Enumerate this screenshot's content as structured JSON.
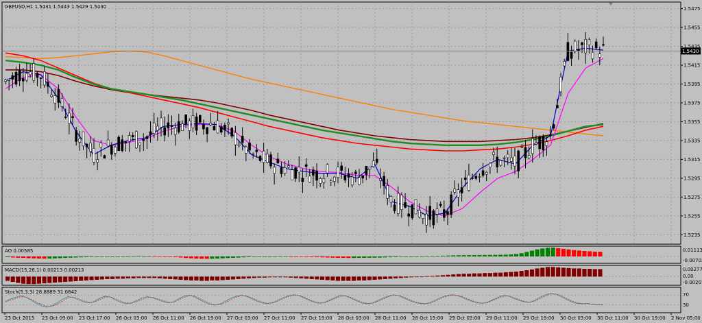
{
  "colors": {
    "background": "#c0c0c0",
    "candle": "#000000",
    "price_line": "#808080",
    "ma_fast": "#0000cc",
    "ma_magenta": "#ff00ff",
    "ma_green": "#228b22",
    "ma_red": "#ff0000",
    "ma_maroon": "#800000",
    "ma_orange": "#ff7f00",
    "ao_up": "#008000",
    "ao_down": "#ff0000",
    "macd": "#800000",
    "stoch_main": "#3a8fb0",
    "stoch_signal": "#cc3333"
  },
  "chart_data": [
    {
      "type": "candlestick",
      "title": "GBPUSD,H1  1.5431 1.5443 1.5429 1.5430",
      "current_price": 1.543,
      "current_price_label": "1.5430",
      "ylim": [
        1.5225,
        1.5482
      ],
      "y_ticks": [
        "1.5475",
        "1.5455",
        "1.5435",
        "1.5415",
        "1.5395",
        "1.5375",
        "1.5355",
        "1.5335",
        "1.5315",
        "1.5295",
        "1.5275",
        "1.5255",
        "1.5235"
      ],
      "x_ticks": [
        "23 Oct 2015",
        "23 Oct 09:00",
        "23 Oct 17:00",
        "26 Oct 03:00",
        "26 Oct 11:00",
        "26 Oct 19:00",
        "27 Oct 03:00",
        "27 Oct 11:00",
        "27 Oct 19:00",
        "28 Oct 03:00",
        "28 Oct 11:00",
        "28 Oct 19:00",
        "29 Oct 03:00",
        "29 Oct 11:00",
        "29 Oct 19:00",
        "30 Oct 03:00",
        "30 Oct 11:00",
        "30 Oct 19:00",
        "2 Nov 05:00"
      ],
      "ma_fast": [
        1.5398,
        1.5408,
        1.5405,
        1.538,
        1.5345,
        1.532,
        1.533,
        1.5335,
        1.5338,
        1.535,
        1.5352,
        1.5353,
        1.5352,
        1.534,
        1.532,
        1.5312,
        1.5305,
        1.5302,
        1.53,
        1.53,
        1.5295,
        1.531,
        1.527,
        1.5265,
        1.5255,
        1.5258,
        1.5285,
        1.5305,
        1.5315,
        1.531,
        1.533,
        1.534,
        1.543,
        1.5433,
        1.5431
      ],
      "ma_magenta": [
        1.539,
        1.5402,
        1.5405,
        1.539,
        1.536,
        1.5335,
        1.533,
        1.5333,
        1.5337,
        1.5345,
        1.535,
        1.5352,
        1.5352,
        1.5345,
        1.533,
        1.5318,
        1.531,
        1.5305,
        1.5302,
        1.5301,
        1.5298,
        1.5298,
        1.5285,
        1.527,
        1.526,
        1.5255,
        1.5263,
        1.528,
        1.5295,
        1.5302,
        1.5315,
        1.533,
        1.5385,
        1.5412,
        1.5422
      ],
      "ma_green": [
        1.542,
        1.5418,
        1.5415,
        1.541,
        1.5402,
        1.5395,
        1.539,
        1.5387,
        1.5384,
        1.5381,
        1.5378,
        1.5374,
        1.537,
        1.5366,
        1.5362,
        1.5358,
        1.5354,
        1.535,
        1.5346,
        1.5343,
        1.534,
        1.5337,
        1.5334,
        1.5332,
        1.5331,
        1.533,
        1.533,
        1.533,
        1.5331,
        1.5333,
        1.5336,
        1.534,
        1.5345,
        1.535,
        1.5352
      ],
      "ma_red": [
        1.5428,
        1.5425,
        1.542,
        1.5412,
        1.5404,
        1.5396,
        1.539,
        1.5386,
        1.5382,
        1.5378,
        1.5374,
        1.537,
        1.5365,
        1.536,
        1.5355,
        1.535,
        1.5346,
        1.5342,
        1.5338,
        1.5335,
        1.5332,
        1.533,
        1.5328,
        1.5326,
        1.5325,
        1.5324,
        1.5324,
        1.5325,
        1.5326,
        1.5328,
        1.5331,
        1.5335,
        1.534,
        1.5346,
        1.535
      ],
      "ma_maroon": [
        1.541,
        1.541,
        1.5408,
        1.5404,
        1.5398,
        1.5393,
        1.5389,
        1.5386,
        1.5384,
        1.5382,
        1.538,
        1.5378,
        1.5375,
        1.5371,
        1.5367,
        1.5362,
        1.5358,
        1.5354,
        1.535,
        1.5346,
        1.5343,
        1.534,
        1.5338,
        1.5336,
        1.5335,
        1.5334,
        1.5334,
        1.5334,
        1.5335,
        1.5336,
        1.5338,
        1.5341,
        1.5345,
        1.5349,
        1.5353
      ],
      "ma_orange": [
        1.5424,
        1.5423,
        1.5422,
        1.5423,
        1.5425,
        1.5427,
        1.5429,
        1.543,
        1.5429,
        1.5425,
        1.542,
        1.5415,
        1.541,
        1.5405,
        1.54,
        1.5396,
        1.5392,
        1.5388,
        1.5384,
        1.538,
        1.5376,
        1.5372,
        1.5368,
        1.5365,
        1.5362,
        1.5359,
        1.5356,
        1.5354,
        1.5352,
        1.535,
        1.5348,
        1.5346,
        1.5344,
        1.5342,
        1.534
      ]
    },
    {
      "type": "bar",
      "title": "AO 0.00585",
      "y_ticks": [
        "0.01113",
        "-0.00702"
      ],
      "ylim": [
        -0.00702,
        0.01113
      ],
      "values": [
        -0.001,
        -0.0014,
        -0.0017,
        -0.0019,
        -0.0022,
        -0.0025,
        -0.0027,
        -0.0028,
        -0.0027,
        -0.0025,
        -0.0022,
        -0.0019,
        -0.0016,
        -0.0014,
        -0.0012,
        -0.001,
        -0.0008,
        -0.0006,
        -0.0005,
        -0.0004,
        -0.0003,
        -0.0002,
        -0.0001,
        0.0001,
        0.0002,
        0.0003,
        0.0004,
        0.0005,
        0.0003,
        0.0001,
        -0.0002,
        -0.0005,
        -0.0009,
        -0.0014,
        -0.002,
        -0.0024,
        -0.0027,
        -0.0029,
        -0.003,
        -0.0029,
        -0.0027,
        -0.0024,
        -0.0021,
        -0.0018,
        -0.0015,
        -0.0012,
        -0.0009,
        -0.0006,
        -0.0004,
        -0.0002,
        -0.0001,
        0.0,
        0.0001,
        0.0001,
        0.0,
        -0.0002,
        -0.0004,
        -0.0006,
        -0.0008,
        -0.001,
        -0.0012,
        -0.0014,
        -0.0016,
        -0.0018,
        -0.0019,
        -0.002,
        -0.002,
        -0.0019,
        -0.0018,
        -0.0017,
        -0.0016,
        -0.0015,
        -0.0013,
        -0.0011,
        -0.0009,
        -0.0007,
        -0.0005,
        -0.0003,
        -0.0001,
        0.0001,
        0.0003,
        0.0005,
        0.0007,
        0.0009,
        0.0011,
        0.0013,
        0.0014,
        0.0015,
        0.0016,
        0.0016,
        0.0017,
        0.0018,
        0.0019,
        0.0019,
        0.002,
        0.0022,
        0.0025,
        0.003,
        0.004,
        0.0055,
        0.0072,
        0.0088,
        0.01,
        0.0108,
        0.0111,
        0.0103,
        0.0095,
        0.0088,
        0.008,
        0.0074,
        0.0068,
        0.0064,
        0.006,
        0.0058
      ]
    },
    {
      "type": "bar",
      "title": "MACD(15,26,1) 0.00213 0.00213",
      "y_ticks": [
        "0.00277",
        "0.00",
        "-0.00207"
      ],
      "ylim": [
        -0.00207,
        0.00277
      ],
      "values": [
        -0.0012,
        -0.0015,
        -0.0018,
        -0.002,
        -0.0021,
        -0.0021,
        -0.002,
        -0.0019,
        -0.0018,
        -0.0017,
        -0.0016,
        -0.0015,
        -0.0014,
        -0.0013,
        -0.0012,
        -0.0011,
        -0.001,
        -0.0009,
        -0.0008,
        -0.0007,
        -0.0007,
        -0.0006,
        -0.0006,
        -0.0005,
        -0.0005,
        -0.0004,
        -0.0004,
        -0.0004,
        -0.0004,
        -0.0005,
        -0.0006,
        -0.0007,
        -0.0008,
        -0.0009,
        -0.001,
        -0.0011,
        -0.0011,
        -0.0012,
        -0.0012,
        -0.0011,
        -0.0011,
        -0.001,
        -0.0009,
        -0.0008,
        -0.0007,
        -0.0006,
        -0.0005,
        -0.0004,
        -0.0003,
        -0.0003,
        -0.0002,
        -0.0002,
        -0.0002,
        -0.0002,
        -0.0003,
        -0.0004,
        -0.0005,
        -0.0006,
        -0.0007,
        -0.0008,
        -0.0009,
        -0.001,
        -0.0011,
        -0.0012,
        -0.0012,
        -0.0012,
        -0.0012,
        -0.0011,
        -0.0011,
        -0.001,
        -0.0009,
        -0.0008,
        -0.0007,
        -0.0006,
        -0.0005,
        -0.0004,
        -0.0003,
        -0.0002,
        -0.0001,
        0.0,
        0.0001,
        0.0002,
        0.0003,
        0.0004,
        0.0005,
        0.0006,
        0.0007,
        0.0008,
        0.0008,
        0.0009,
        0.0009,
        0.001,
        0.001,
        0.0011,
        0.0011,
        0.0012,
        0.0013,
        0.0014,
        0.0016,
        0.0018,
        0.002,
        0.0023,
        0.0025,
        0.0027,
        0.0027,
        0.0026,
        0.0025,
        0.0024,
        0.0023,
        0.0023,
        0.0022,
        0.0022,
        0.0021,
        0.0021
      ]
    },
    {
      "type": "line",
      "title": "Stoch(5,3,3) 28.8889 31.0842",
      "y_ticks": [
        "70",
        "30"
      ],
      "ylim": [
        0,
        100
      ],
      "levels": [
        70,
        30
      ],
      "series": [
        {
          "values": [
            45,
            55,
            62,
            68,
            60,
            48,
            35,
            25,
            20,
            28,
            40,
            55,
            65,
            60,
            50,
            42,
            38,
            45,
            58,
            66,
            62,
            50,
            40,
            35,
            38,
            48,
            58,
            64,
            60,
            52,
            44,
            38,
            42,
            55,
            66,
            70,
            64,
            52,
            40,
            32,
            28,
            34,
            46,
            58,
            66,
            70,
            65,
            55,
            45,
            38,
            35,
            40,
            50,
            60,
            68,
            72,
            68,
            58,
            48,
            40,
            36,
            42,
            52,
            62,
            70,
            66,
            56,
            46,
            38,
            34,
            38,
            48,
            58,
            66,
            72,
            68,
            58,
            48,
            40,
            36,
            34,
            40,
            50,
            60,
            68,
            72,
            70,
            62,
            52,
            44,
            38,
            36,
            42,
            52,
            62,
            70,
            66,
            56,
            48,
            42,
            40,
            50,
            62,
            72,
            78,
            74,
            64,
            52,
            42,
            36,
            34,
            36,
            32,
            30,
            29
          ]
        },
        {
          "values": [
            42,
            50,
            58,
            64,
            62,
            52,
            40,
            30,
            23,
            25,
            34,
            48,
            60,
            62,
            55,
            46,
            40,
            42,
            52,
            62,
            63,
            55,
            45,
            38,
            37,
            43,
            52,
            60,
            61,
            55,
            48,
            41,
            41,
            50,
            61,
            68,
            67,
            57,
            46,
            36,
            30,
            31,
            40,
            52,
            62,
            68,
            67,
            59,
            49,
            41,
            36,
            38,
            46,
            56,
            65,
            70,
            69,
            61,
            51,
            43,
            38,
            40,
            48,
            58,
            66,
            67,
            60,
            50,
            41,
            36,
            37,
            44,
            54,
            63,
            70,
            69,
            62,
            52,
            43,
            38,
            35,
            37,
            46,
            56,
            65,
            70,
            70,
            65,
            56,
            47,
            40,
            37,
            40,
            49,
            58,
            66,
            67,
            60,
            51,
            44,
            41,
            46,
            57,
            68,
            75,
            75,
            68,
            57,
            46,
            39,
            35,
            35,
            33,
            31,
            31
          ]
        }
      ]
    }
  ]
}
